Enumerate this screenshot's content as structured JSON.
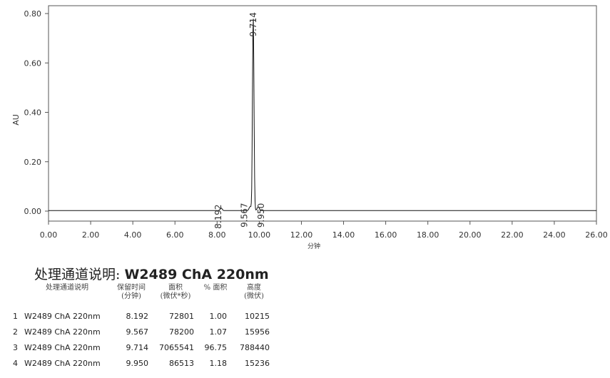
{
  "chart_data": {
    "type": "line",
    "ylabel": "AU",
    "xlabel": "分钟",
    "xlim": [
      0,
      26
    ],
    "ylim": [
      0,
      0.85
    ],
    "x_ticks": [
      "0.00",
      "2.00",
      "4.00",
      "6.00",
      "8.00",
      "10.00",
      "12.00",
      "14.00",
      "16.00",
      "18.00",
      "20.00",
      "22.00",
      "24.00",
      "26.00"
    ],
    "y_ticks": [
      "0.00",
      "0.20",
      "0.40",
      "0.60",
      "0.80"
    ],
    "peaks": [
      {
        "rt": 8.192,
        "label": "8.192",
        "height": 0.0102
      },
      {
        "rt": 9.567,
        "label": "9.567",
        "height": 0.016
      },
      {
        "rt": 9.714,
        "label": "9.714",
        "height": 0.788
      },
      {
        "rt": 9.95,
        "label": "9.950",
        "height": 0.0152
      }
    ]
  },
  "table": {
    "title_prefix": "处理通道说明:",
    "title_channel": "W2489 ChA 220nm",
    "headers": [
      {
        "line1": "处理通道说明",
        "line2": ""
      },
      {
        "line1": "保留时间",
        "line2": "(分钟)"
      },
      {
        "line1": "面积",
        "line2": "(微伏*秒)"
      },
      {
        "line1": "% 面积",
        "line2": ""
      },
      {
        "line1": "高度",
        "line2": "(微伏)"
      }
    ],
    "rows": [
      {
        "idx": "1",
        "name": "W2489 ChA 220nm",
        "rt": "8.192",
        "area": "72801",
        "pct": "1.00",
        "height": "10215"
      },
      {
        "idx": "2",
        "name": "W2489 ChA 220nm",
        "rt": "9.567",
        "area": "78200",
        "pct": "1.07",
        "height": "15956"
      },
      {
        "idx": "3",
        "name": "W2489 ChA 220nm",
        "rt": "9.714",
        "area": "7065541",
        "pct": "96.75",
        "height": "788440"
      },
      {
        "idx": "4",
        "name": "W2489 ChA 220nm",
        "rt": "9.950",
        "area": "86513",
        "pct": "1.18",
        "height": "15236"
      }
    ]
  }
}
